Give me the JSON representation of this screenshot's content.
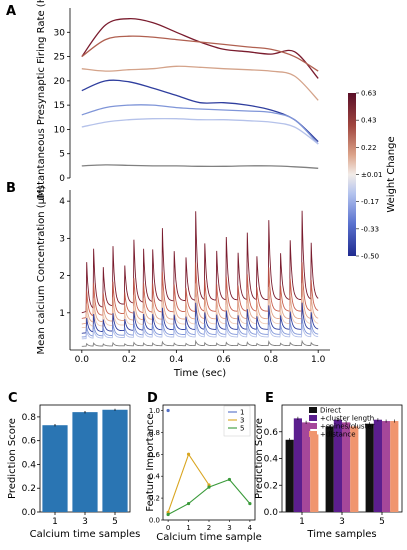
{
  "panels": {
    "A": "A",
    "B": "B",
    "C": "C",
    "D": "D",
    "E": "E"
  },
  "chart_data": [
    {
      "panel": "A",
      "type": "line",
      "ylabel": "Instantaneous Presynaptic Firing Rate (Hz)",
      "ylim": [
        0,
        35
      ],
      "yticks": [
        "0",
        "5",
        "10",
        "15",
        "20",
        "25",
        "30"
      ],
      "x": [
        0,
        0.1,
        0.2,
        0.3,
        0.4,
        0.5,
        0.6,
        0.7,
        0.8,
        0.9,
        1.0
      ],
      "series": [
        {
          "color": "#7a1c2e",
          "values": [
            25.0,
            31.5,
            32.8,
            32.0,
            30.0,
            28.0,
            26.5,
            26.0,
            25.5,
            26.0,
            20.5
          ]
        },
        {
          "color": "#b06050",
          "values": [
            25.0,
            28.5,
            29.2,
            29.0,
            28.5,
            28.0,
            27.5,
            27.0,
            26.5,
            25.0,
            22.0
          ]
        },
        {
          "color": "#d4a38a",
          "values": [
            22.5,
            22.0,
            22.3,
            22.5,
            23.0,
            22.8,
            22.5,
            22.3,
            22.0,
            21.0,
            16.0
          ]
        },
        {
          "color": "#2f3e9e",
          "values": [
            18.0,
            20.0,
            19.8,
            18.5,
            17.0,
            15.5,
            15.5,
            15.0,
            14.0,
            12.0,
            7.5
          ]
        },
        {
          "color": "#7f95d8",
          "values": [
            13.0,
            14.5,
            15.0,
            15.0,
            14.5,
            14.2,
            14.0,
            13.8,
            13.5,
            12.0,
            7.0
          ]
        },
        {
          "color": "#b5c2ea",
          "values": [
            10.5,
            11.5,
            12.0,
            12.2,
            12.2,
            12.0,
            12.0,
            11.8,
            11.5,
            10.5,
            7.0
          ]
        },
        {
          "color": "#808080",
          "values": [
            2.5,
            2.7,
            2.6,
            2.5,
            2.5,
            2.4,
            2.4,
            2.5,
            2.5,
            2.3,
            2.0
          ]
        }
      ]
    },
    {
      "panel": "colorbar",
      "type": "heatmap",
      "label": "Weight Change",
      "ticks": [
        "0.63",
        "0.43",
        "0.22",
        "±0.01",
        "-0.17",
        "-0.33",
        "-0.50"
      ],
      "range": [
        -0.5,
        0.63
      ]
    },
    {
      "panel": "B",
      "type": "line",
      "xlabel": "Time (sec)",
      "ylabel": "Mean calcium Concentration (μM)",
      "xlim": [
        -0.05,
        1.05
      ],
      "ylim": [
        0,
        4.3
      ],
      "xticks": [
        "0.0",
        "0.2",
        "0.4",
        "0.6",
        "0.8",
        "1.0"
      ],
      "yticks": [
        "1",
        "2",
        "3",
        "4"
      ],
      "series": [
        {
          "color": "#7a1c2e",
          "base": 1.0,
          "scale": 1.0
        },
        {
          "color": "#c8604f",
          "base": 0.85,
          "scale": 0.55
        },
        {
          "color": "#e0a58b",
          "base": 0.7,
          "scale": 0.4
        },
        {
          "color": "#f0cdb8",
          "base": 0.6,
          "scale": 0.3
        },
        {
          "color": "#2f3e9e",
          "base": 0.45,
          "scale": 0.3
        },
        {
          "color": "#7f95d8",
          "base": 0.35,
          "scale": 0.2
        },
        {
          "color": "#b5c2ea",
          "base": 0.3,
          "scale": 0.15
        },
        {
          "color": "#808080",
          "base": 0.1,
          "scale": 0.05
        }
      ]
    },
    {
      "panel": "C",
      "type": "bar",
      "xlabel": "Calcium time samples",
      "ylabel": "Prediction Score",
      "categories": [
        "1",
        "3",
        "5"
      ],
      "values": [
        0.73,
        0.84,
        0.86
      ],
      "errors": [
        0.01,
        0.01,
        0.008
      ],
      "color": "#2a75b3",
      "ylim": [
        0,
        0.9
      ],
      "yticks": [
        "0.0",
        "0.2",
        "0.4",
        "0.6",
        "0.8"
      ]
    },
    {
      "panel": "D",
      "type": "line",
      "xlabel": "Calcium time sample",
      "ylabel": "Feature Importance",
      "x": [
        0,
        1,
        2,
        3,
        4
      ],
      "ylim": [
        0,
        1.05
      ],
      "xticks": [
        "0",
        "1",
        "2",
        "3",
        "4"
      ],
      "yticks": [
        "0.0",
        "0.2",
        "0.4",
        "0.6",
        "0.8",
        "1.0"
      ],
      "series": [
        {
          "name": "1",
          "color": "#5470c6",
          "x": [
            0
          ],
          "values": [
            1.0
          ]
        },
        {
          "name": "3",
          "color": "#d9a520",
          "x": [
            0,
            1,
            2
          ],
          "values": [
            0.07,
            0.6,
            0.32
          ]
        },
        {
          "name": "5",
          "color": "#3a9a3a",
          "x": [
            0,
            1,
            2,
            3,
            4
          ],
          "values": [
            0.05,
            0.15,
            0.3,
            0.37,
            0.15
          ]
        }
      ]
    },
    {
      "panel": "E",
      "type": "bar",
      "xlabel": "Time samples",
      "ylabel": "Prediction Score",
      "categories": [
        "1",
        "3",
        "5"
      ],
      "ylim": [
        0,
        0.8
      ],
      "yticks": [
        "0.0",
        "0.2",
        "0.4",
        "0.6"
      ],
      "series": [
        {
          "name": "Direct",
          "color": "#111111",
          "values": [
            0.54,
            0.64,
            0.66
          ]
        },
        {
          "name": "+cluster length",
          "color": "#5b1e8e",
          "values": [
            0.7,
            0.69,
            0.69
          ]
        },
        {
          "name": "+spines/cluster",
          "color": "#a5479a",
          "values": [
            0.67,
            0.67,
            0.68
          ]
        },
        {
          "name": "+distance",
          "color": "#f0956e",
          "values": [
            0.58,
            0.64,
            0.68
          ]
        }
      ]
    }
  ]
}
